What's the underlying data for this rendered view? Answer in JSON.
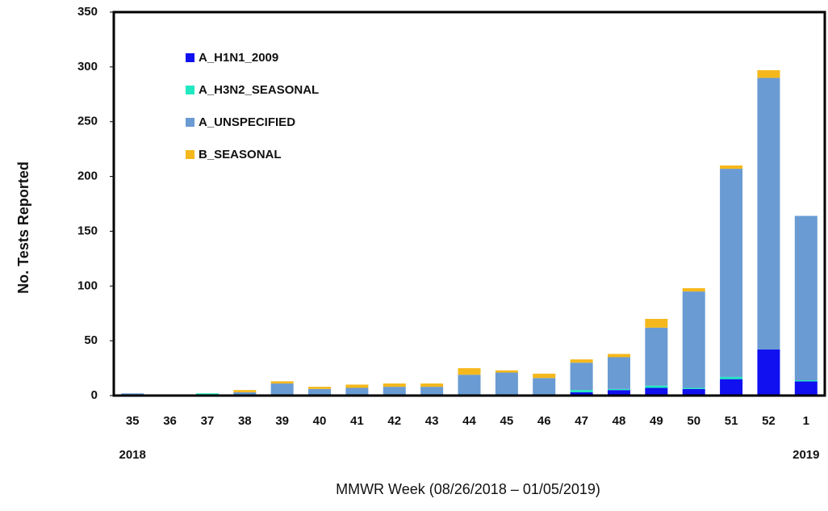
{
  "chart_data": {
    "type": "stacked-bar",
    "y_label": "No. Tests Reported",
    "x_label": "MMWR Week (08/26/2018 – 01/05/2019)",
    "categories": [
      "35",
      "36",
      "37",
      "38",
      "39",
      "40",
      "41",
      "42",
      "43",
      "44",
      "45",
      "46",
      "47",
      "48",
      "49",
      "50",
      "51",
      "52",
      "1"
    ],
    "year_labels": [
      "2018",
      null,
      null,
      null,
      null,
      null,
      null,
      null,
      null,
      null,
      null,
      null,
      null,
      null,
      null,
      null,
      null,
      null,
      "2019"
    ],
    "series": [
      {
        "name": "A_H1N1_2009",
        "color": "#1010f0",
        "values": [
          0,
          0,
          0,
          0,
          0,
          0,
          0,
          0,
          0,
          0,
          0,
          0,
          3,
          5,
          7,
          6,
          15,
          42,
          13
        ]
      },
      {
        "name": "A_H3N2_SEASONAL",
        "color": "#20e8c0",
        "values": [
          0,
          0,
          2,
          0,
          1,
          1,
          0,
          0,
          0,
          0,
          0,
          0,
          2,
          1,
          2,
          1,
          2,
          0,
          1
        ]
      },
      {
        "name": "A_UNSPECIFIED",
        "color": "#6a9bd3",
        "values": [
          2,
          0,
          0,
          3,
          10,
          5,
          7,
          8,
          8,
          19,
          21,
          16,
          25,
          29,
          53,
          88,
          190,
          248,
          150
        ]
      },
      {
        "name": "B_SEASONAL",
        "color": "#f5b81c",
        "values": [
          0,
          1,
          0,
          2,
          2,
          2,
          3,
          3,
          3,
          6,
          2,
          4,
          3,
          3,
          8,
          3,
          3,
          7,
          0
        ]
      }
    ],
    "ylim": [
      0,
      350
    ],
    "yticks": [
      0,
      50,
      100,
      150,
      200,
      250,
      300,
      350
    ]
  }
}
